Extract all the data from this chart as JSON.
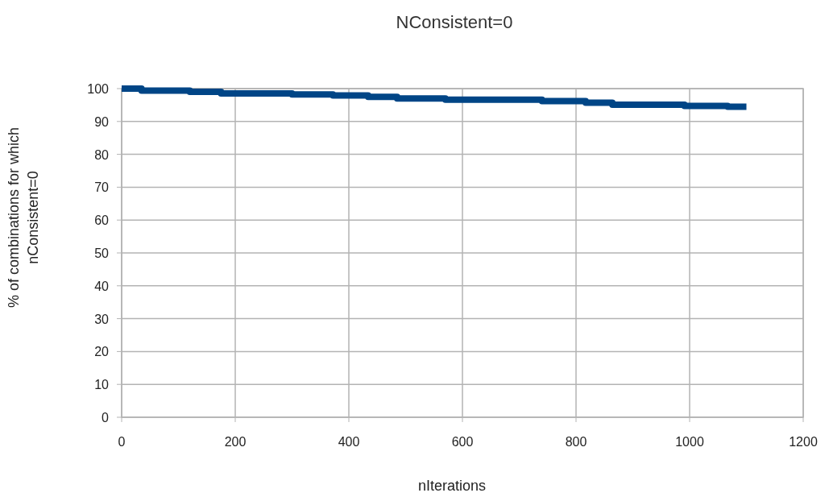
{
  "chart_data": {
    "type": "step",
    "title": "NConsistent=0",
    "xlabel": "nIterations",
    "ylabel": "% of combinations for which nConsistent=0",
    "x": [
      0,
      35,
      120,
      175,
      300,
      372,
      434,
      485,
      570,
      740,
      817,
      864,
      991,
      1067,
      1100
    ],
    "series": [
      {
        "color": "#004586",
        "values": [
          100,
          99.4,
          99.0,
          98.5,
          98.2,
          97.9,
          97.5,
          97.0,
          96.6,
          96.2,
          95.7,
          95.1,
          94.7,
          94.5,
          94.5
        ]
      }
    ],
    "xlim": [
      0,
      1200
    ],
    "xticks": [
      0,
      200,
      400,
      600,
      800,
      1000,
      1200
    ],
    "ylim": [
      0,
      100
    ],
    "yticks": [
      0,
      10,
      20,
      30,
      40,
      50,
      60,
      70,
      80,
      90,
      100
    ],
    "grid": true
  }
}
